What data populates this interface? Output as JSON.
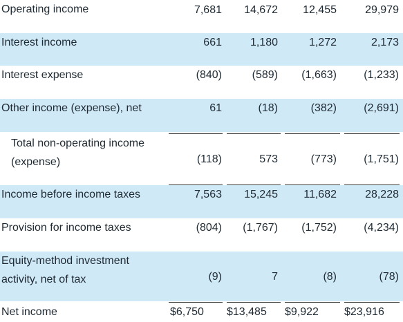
{
  "rows": [
    {
      "label": "Operating income",
      "v": [
        "7,681",
        "14,672",
        "12,455",
        "29,979"
      ]
    },
    {
      "label": "Interest income",
      "v": [
        "661",
        "1,180",
        "1,272",
        "2,173"
      ]
    },
    {
      "label": "Interest expense",
      "v": [
        "(840)",
        "(589)",
        "(1,663)",
        "(1,233)"
      ]
    },
    {
      "label": "Other income (expense), net",
      "v": [
        "61",
        "(18)",
        "(382)",
        "(2,691)"
      ]
    },
    {
      "label_line1": "Total non-operating income",
      "label_line2": "(expense)",
      "v": [
        "(118)",
        "573",
        "(773)",
        "(1,751)"
      ]
    },
    {
      "label": "Income before income taxes",
      "v": [
        "7,563",
        "15,245",
        "11,682",
        "28,228"
      ]
    },
    {
      "label": "Provision for income taxes",
      "v": [
        "(804)",
        "(1,767)",
        "(1,752)",
        "(4,234)"
      ]
    },
    {
      "label_line1": "Equity-method investment",
      "label_line2": "activity, net of tax",
      "v": [
        "(9)",
        "7",
        "(8)",
        "(78)"
      ]
    },
    {
      "label": "Net income",
      "v": [
        "$6,750",
        "$13,485",
        "$9,922",
        "$23,916"
      ]
    }
  ],
  "colors": {
    "shade": "#cfe9f7",
    "text": "#1f2a33"
  }
}
